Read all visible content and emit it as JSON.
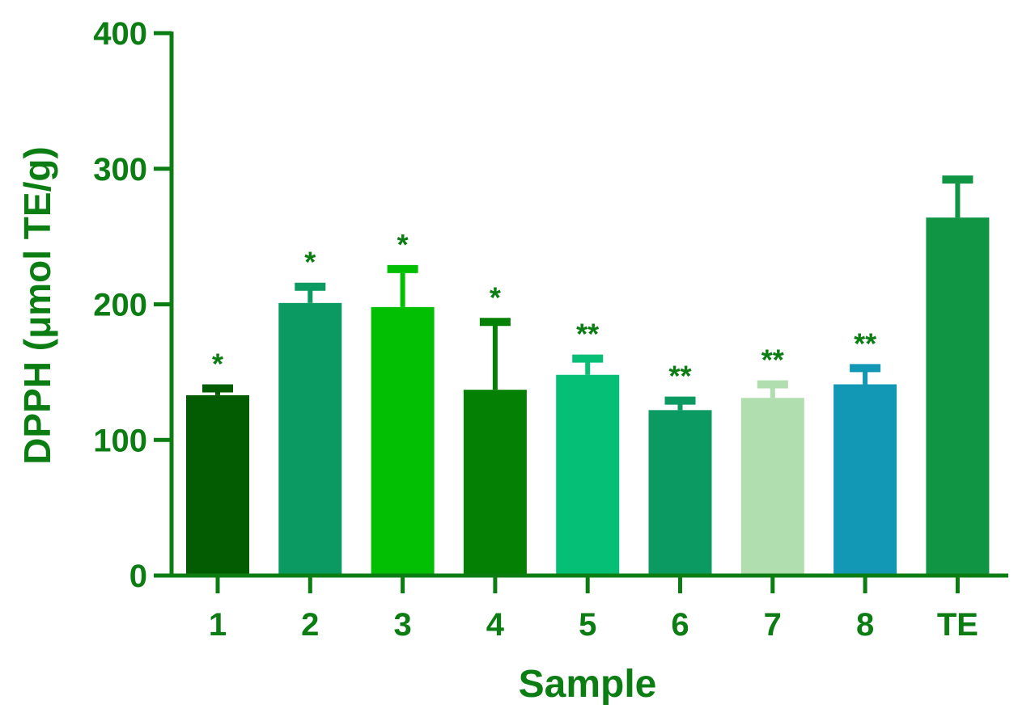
{
  "chart_data": {
    "type": "bar",
    "categories": [
      "1",
      "2",
      "3",
      "4",
      "5",
      "6",
      "7",
      "8",
      "TE"
    ],
    "values": [
      133,
      201,
      198,
      137,
      148,
      122,
      131,
      141,
      264
    ],
    "errors": [
      5,
      12,
      28,
      50,
      12,
      7,
      10,
      12,
      28
    ],
    "significance": [
      "*",
      "*",
      "*",
      "*",
      "**",
      "**",
      "**",
      "**",
      ""
    ],
    "bar_colors": [
      "#035c02",
      "#0b9a61",
      "#03bf04",
      "#048104",
      "#05bf76",
      "#0b9a61",
      "#b0deae",
      "#1297b5",
      "#0f9543"
    ],
    "axis_color": "#0b7d13",
    "xlabel": "Sample",
    "ylabel": "DPPH (μmol TE/g)",
    "ylim": [
      0,
      400
    ],
    "yticks": [
      0,
      100,
      200,
      300,
      400
    ],
    "grid": false,
    "legend": "none"
  }
}
